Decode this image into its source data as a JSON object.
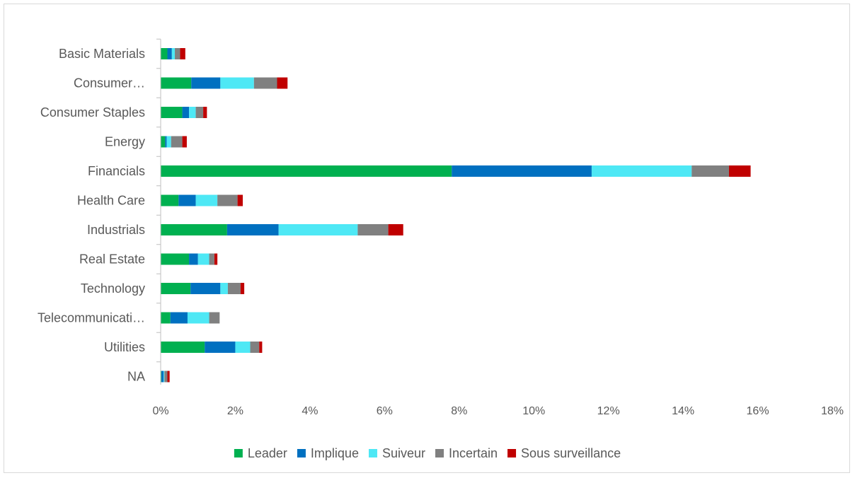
{
  "chart_data": {
    "type": "bar",
    "orientation": "horizontal",
    "stacked": true,
    "categories": [
      "Basic Materials",
      "Consumer…",
      "Consumer Staples",
      "Energy",
      "Financials",
      "Health Care",
      "Industrials",
      "Real Estate",
      "Technology",
      "Telecommunicati…",
      "Utilities",
      "NA"
    ],
    "series": [
      {
        "name": "Leader",
        "color": "#00b050",
        "values": [
          0.18,
          0.82,
          0.58,
          0.12,
          7.8,
          0.48,
          1.78,
          0.76,
          0.8,
          0.26,
          1.18,
          0.02
        ]
      },
      {
        "name": "Implique",
        "color": "#0070c0",
        "values": [
          0.12,
          0.78,
          0.18,
          0.04,
          3.75,
          0.46,
          1.38,
          0.24,
          0.8,
          0.46,
          0.82,
          0.06
        ]
      },
      {
        "name": "Suiveur",
        "color": "#4ee8f5",
        "values": [
          0.08,
          0.9,
          0.18,
          0.12,
          2.68,
          0.58,
          2.12,
          0.3,
          0.2,
          0.58,
          0.4,
          0.02
        ]
      },
      {
        "name": "Incertain",
        "color": "#808080",
        "values": [
          0.14,
          0.62,
          0.2,
          0.3,
          1.0,
          0.54,
          0.82,
          0.14,
          0.34,
          0.28,
          0.24,
          0.08
        ]
      },
      {
        "name": "Sous surveillance",
        "color": "#c00000",
        "values": [
          0.14,
          0.28,
          0.1,
          0.12,
          0.58,
          0.14,
          0.4,
          0.08,
          0.1,
          0.0,
          0.08,
          0.06
        ]
      }
    ],
    "xlim": [
      0,
      18
    ],
    "x_ticks": [
      "0%",
      "2%",
      "4%",
      "6%",
      "8%",
      "10%",
      "12%",
      "14%",
      "16%",
      "18%"
    ],
    "x_tick_values": [
      0,
      2,
      4,
      6,
      8,
      10,
      12,
      14,
      16,
      18
    ],
    "grid": false,
    "legend_position": "bottom",
    "title": "",
    "xlabel": "",
    "ylabel": ""
  }
}
